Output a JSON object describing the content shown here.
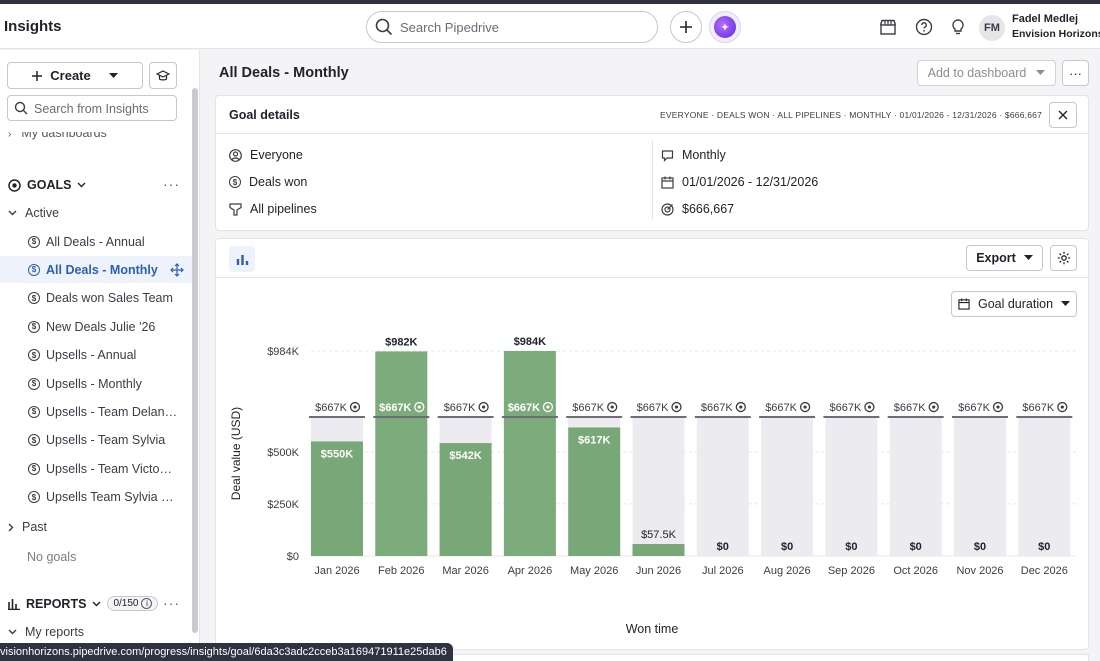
{
  "topbar": {
    "app_title": "Insights",
    "search_placeholder": "Search Pipedrive",
    "user_initials": "FM",
    "user_name": "Fadel Medlej",
    "user_company": "Envision Horizons"
  },
  "sidebar": {
    "create_label": "Create",
    "search_placeholder": "Search from Insights",
    "clipped_item": "My dashboards",
    "goals_label": "GOALS",
    "active_label": "Active",
    "goals": [
      {
        "label": "All Deals - Annual",
        "active": false
      },
      {
        "label": "All Deals - Monthly",
        "active": true
      },
      {
        "label": "Deals won Sales Team",
        "active": false
      },
      {
        "label": "New Deals Julie '26",
        "active": false
      },
      {
        "label": "Upsells - Annual",
        "active": false
      },
      {
        "label": "Upsells - Monthly",
        "active": false
      },
      {
        "label": "Upsells - Team Delan…",
        "active": false
      },
      {
        "label": "Upsells - Team Sylvia",
        "active": false
      },
      {
        "label": "Upsells - Team Victo…",
        "active": false
      },
      {
        "label": "Upsells Team Sylvia …",
        "active": false
      }
    ],
    "past_label": "Past",
    "no_goals": "No goals",
    "reports_label": "REPORTS",
    "reports_badge": "0/150",
    "my_reports": "My reports"
  },
  "status_url": "visionhorizons.pipedrive.com/progress/insights/goal/6da3c3adc2cceb3a169471911e25dab6",
  "main": {
    "title": "All Deals - Monthly",
    "add_to_dashboard": "Add to dashboard",
    "goal_details": {
      "title": "Goal details",
      "summary": "EVERYONE  ·  DEALS WON  ·  ALL PIPELINES  ·  MONTHLY  ·  01/01/2026 - 12/31/2026  ·  $666,667",
      "assignee": "Everyone",
      "type": "Deals won",
      "pipeline": "All pipelines",
      "interval": "Monthly",
      "period": "01/01/2026 - 12/31/2026",
      "target": "$666,667"
    },
    "export_label": "Export",
    "duration_label": "Goal duration"
  },
  "chart_data": {
    "type": "bar",
    "xlabel": "Won time",
    "ylabel": "Deal value (USD)",
    "y_ticks": [
      "$0",
      "$250K",
      "$500K",
      "$984K"
    ],
    "y_tick_values": [
      0,
      250,
      500,
      984
    ],
    "ylim": [
      0,
      984
    ],
    "goal_value": 667,
    "goal_label": "$667K",
    "categories": [
      "Jan 2026",
      "Feb 2026",
      "Mar 2026",
      "Apr 2026",
      "May 2026",
      "Jun 2026",
      "Jul 2026",
      "Aug 2026",
      "Sep 2026",
      "Oct 2026",
      "Nov 2026",
      "Dec 2026"
    ],
    "values": [
      550,
      982,
      542,
      984,
      617,
      57.5,
      0,
      0,
      0,
      0,
      0,
      0
    ],
    "value_labels": [
      "$550K",
      "$982K",
      "$542K",
      "$984K",
      "$617K",
      "$57.5K",
      "$0",
      "$0",
      "$0",
      "$0",
      "$0",
      "$0"
    ],
    "colors": {
      "achieved": "#7cab7c",
      "below": "#78a878",
      "target_bg": "#ececf0",
      "goal_line": "#6b6e78"
    }
  }
}
